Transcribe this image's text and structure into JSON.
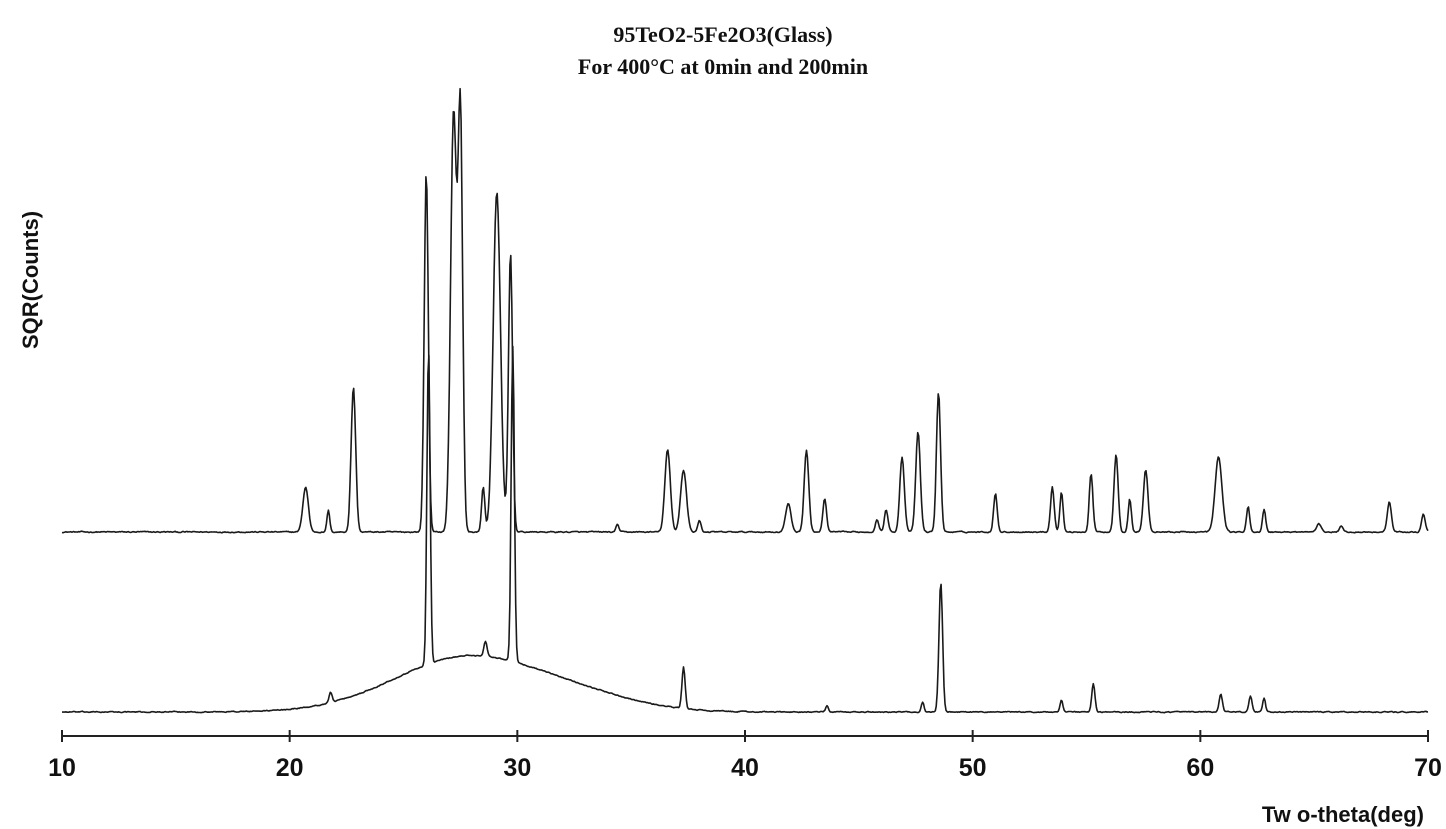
{
  "chart_data": {
    "type": "line",
    "title": [
      "95TeO2-5Fe2O3(Glass)",
      "For 400°C at 0min and 200min"
    ],
    "xlabel": "Tw o-theta(deg)",
    "ylabel": "SQR(Counts)",
    "xlim": [
      10,
      70
    ],
    "xticks": [
      10,
      20,
      30,
      40,
      50,
      60,
      70
    ],
    "y_tick_labels": false,
    "grid": false,
    "legend": false,
    "series": [
      {
        "key": "upper",
        "line_color": "#1a1a1a",
        "baseline": 0.0,
        "noise": 0.012,
        "amorphous": [],
        "peaks": [
          [
            20.7,
            0.45,
            0.12
          ],
          [
            21.7,
            0.22,
            0.06
          ],
          [
            22.8,
            1.45,
            0.1
          ],
          [
            26.0,
            3.6,
            0.09
          ],
          [
            27.2,
            4.2,
            0.13
          ],
          [
            27.5,
            4.1,
            0.1
          ],
          [
            28.5,
            0.45,
            0.07
          ],
          [
            29.1,
            3.4,
            0.16
          ],
          [
            29.7,
            2.8,
            0.09
          ],
          [
            34.4,
            0.08,
            0.06
          ],
          [
            36.6,
            0.82,
            0.12
          ],
          [
            37.3,
            0.62,
            0.13
          ],
          [
            38.0,
            0.12,
            0.07
          ],
          [
            41.9,
            0.28,
            0.12
          ],
          [
            42.7,
            0.82,
            0.1
          ],
          [
            43.5,
            0.33,
            0.08
          ],
          [
            45.8,
            0.12,
            0.08
          ],
          [
            46.2,
            0.22,
            0.08
          ],
          [
            46.9,
            0.75,
            0.1
          ],
          [
            47.6,
            1.0,
            0.1
          ],
          [
            48.5,
            1.4,
            0.09
          ],
          [
            51.0,
            0.38,
            0.08
          ],
          [
            53.5,
            0.45,
            0.08
          ],
          [
            53.9,
            0.4,
            0.07
          ],
          [
            55.2,
            0.58,
            0.08
          ],
          [
            56.3,
            0.78,
            0.09
          ],
          [
            56.9,
            0.33,
            0.07
          ],
          [
            57.6,
            0.62,
            0.1
          ],
          [
            60.8,
            0.75,
            0.15
          ],
          [
            62.1,
            0.25,
            0.07
          ],
          [
            62.8,
            0.22,
            0.07
          ],
          [
            65.2,
            0.08,
            0.1
          ],
          [
            66.2,
            0.06,
            0.08
          ],
          [
            68.3,
            0.3,
            0.09
          ],
          [
            69.8,
            0.18,
            0.08
          ]
        ]
      },
      {
        "key": "lower",
        "line_color": "#1a1a1a",
        "baseline": -0.02,
        "noise": 0.01,
        "amorphous": [
          [
            27.8,
            0.55,
            3.2
          ],
          [
            33.0,
            0.12,
            2.5
          ]
        ],
        "peaks": [
          [
            21.8,
            0.1,
            0.07
          ],
          [
            26.1,
            3.15,
            0.07
          ],
          [
            28.6,
            0.15,
            0.07
          ],
          [
            29.8,
            3.15,
            0.07
          ],
          [
            37.3,
            0.42,
            0.07
          ],
          [
            43.6,
            0.06,
            0.06
          ],
          [
            47.8,
            0.1,
            0.06
          ],
          [
            48.6,
            1.3,
            0.08
          ],
          [
            53.9,
            0.12,
            0.06
          ],
          [
            55.3,
            0.28,
            0.07
          ],
          [
            60.9,
            0.18,
            0.07
          ],
          [
            62.2,
            0.16,
            0.07
          ],
          [
            62.8,
            0.14,
            0.06
          ]
        ]
      }
    ]
  }
}
